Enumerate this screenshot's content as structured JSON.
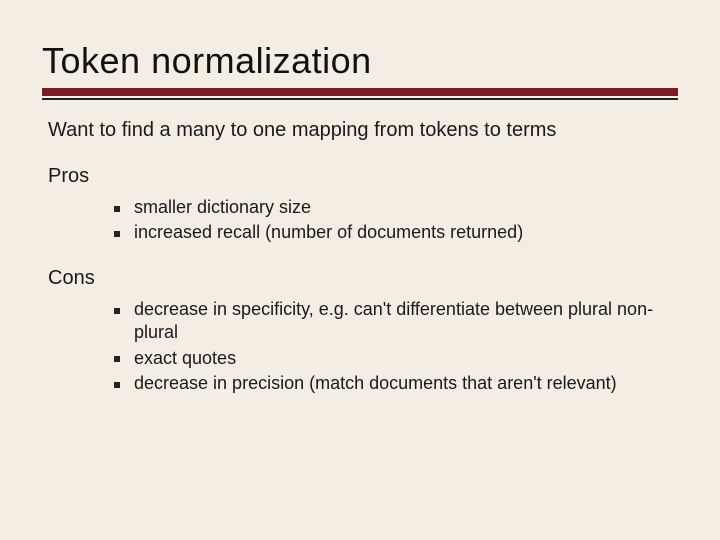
{
  "colors": {
    "background": "#f3ede3",
    "text": "#1a1a1a",
    "rule_dark": "#7b1b24",
    "rule_thin": "#222222",
    "bullet": "#222222"
  },
  "typography": {
    "title_fontsize": 36,
    "body_fontsize": 20,
    "bullet_fontsize": 18,
    "font_family": "Verdana"
  },
  "title": "Token normalization",
  "intro": "Want to find a many to one mapping from tokens to terms",
  "sections": [
    {
      "heading": "Pros",
      "items": [
        "smaller dictionary size",
        "increased recall (number of documents returned)"
      ]
    },
    {
      "heading": "Cons",
      "items": [
        "decrease in specificity, e.g. can't differentiate between plural non-plural",
        "exact quotes",
        "decrease in precision (match documents that aren't relevant)"
      ]
    }
  ]
}
